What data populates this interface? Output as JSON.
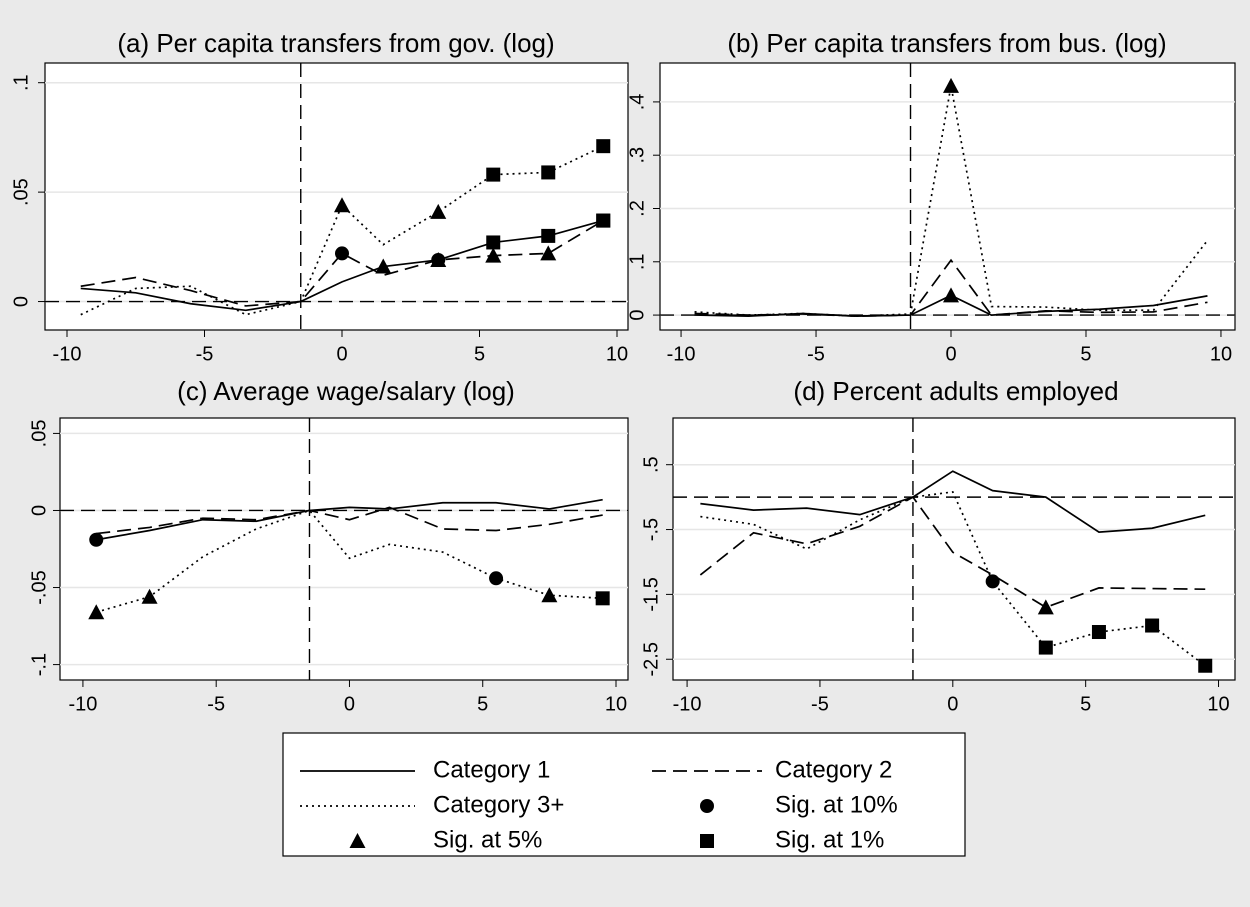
{
  "legend": [
    {
      "name": "Category 1",
      "line": "solid"
    },
    {
      "name": "Category 2",
      "line": "dashed"
    },
    {
      "name": "Category 3+",
      "line": "dotted"
    },
    {
      "name": "Sig. at 10%",
      "symbol": "circle"
    },
    {
      "name": "Sig. at 5%",
      "symbol": "triangle"
    },
    {
      "name": "Sig. at 1%",
      "symbol": "square"
    }
  ],
  "chart_data": [
    {
      "type": "line",
      "title": "(a) Per capita transfers from gov. (log)",
      "x": [
        -9.5,
        -7.5,
        -5.5,
        -3.5,
        -1.5,
        0,
        1.5,
        3.5,
        5.5,
        7.5,
        9.5
      ],
      "xlim": [
        -10.8,
        10.4
      ],
      "xticks": [
        -10,
        -5,
        0,
        5,
        10
      ],
      "ylim": [
        -0.013,
        0.109
      ],
      "yticks": [
        {
          "value": 0,
          "label": "0"
        },
        {
          "value": 0.05,
          "label": ".05"
        },
        {
          "value": 0.1,
          "label": ".1"
        }
      ],
      "grid": true,
      "refline_x": -1.5,
      "refline_y": 0,
      "series": [
        {
          "line": "solid",
          "values": [
            0.006,
            0.004,
            -0.001,
            -0.004,
            0,
            0.009,
            0.016,
            0.019,
            0.027,
            0.03,
            0.037
          ],
          "symbols": [
            null,
            null,
            null,
            null,
            null,
            null,
            "triangle",
            "circle",
            "square",
            "square",
            "square"
          ]
        },
        {
          "line": "dashed",
          "values": [
            0.007,
            0.011,
            0.005,
            -0.002,
            0,
            0.022,
            0.012,
            0.019,
            0.021,
            0.022,
            0.037
          ],
          "symbols": [
            null,
            null,
            null,
            null,
            null,
            "circle",
            null,
            "triangle",
            "triangle",
            "triangle",
            "square"
          ]
        },
        {
          "line": "dotted",
          "values": [
            -0.006,
            0.006,
            0.007,
            -0.006,
            0,
            0.044,
            0.026,
            0.041,
            0.058,
            0.059,
            0.071
          ],
          "symbols": [
            null,
            null,
            null,
            null,
            null,
            "triangle",
            null,
            "triangle",
            "square",
            "square",
            "square"
          ]
        }
      ]
    },
    {
      "type": "line",
      "title": "(b) Per capita transfers from bus. (log)",
      "x": [
        -9.5,
        -7.5,
        -5.5,
        -3.5,
        -1.5,
        0,
        1.5,
        3.5,
        5.5,
        7.5,
        9.5
      ],
      "xlim": [
        -10.78,
        10.52
      ],
      "xticks": [
        -10,
        -5,
        0,
        5,
        10
      ],
      "ylim": [
        -0.028,
        0.473
      ],
      "yticks": [
        {
          "value": 0,
          "label": "0"
        },
        {
          "value": 0.1,
          "label": ".1"
        },
        {
          "value": 0.2,
          "label": ".2"
        },
        {
          "value": 0.3,
          "label": ".3"
        },
        {
          "value": 0.4,
          "label": ".4"
        }
      ],
      "grid": true,
      "refline_x": -1.5,
      "refline_y": 0,
      "series": [
        {
          "line": "solid",
          "values": [
            0,
            -0.002,
            0.003,
            -0.002,
            0,
            0.037,
            0,
            0.007,
            0.011,
            0.018,
            0.036
          ],
          "symbols": [
            null,
            null,
            null,
            null,
            null,
            "triangle",
            null,
            null,
            null,
            null,
            null
          ]
        },
        {
          "line": "dashed",
          "values": [
            0.003,
            0,
            0.002,
            -0.002,
            0,
            0.103,
            0,
            0.008,
            0.005,
            0.006,
            0.024
          ],
          "symbols": [
            null,
            null,
            null,
            null,
            null,
            null,
            null,
            null,
            null,
            null,
            null
          ]
        },
        {
          "line": "dotted",
          "values": [
            0.006,
            0,
            0.003,
            -0.002,
            0.002,
            0.43,
            0.016,
            0.015,
            0.009,
            0.009,
            0.14
          ],
          "symbols": [
            null,
            null,
            null,
            null,
            null,
            "triangle",
            null,
            null,
            null,
            null,
            null
          ]
        }
      ]
    },
    {
      "type": "line",
      "title": "(c) Average wage/salary (log)",
      "x": [
        -9.5,
        -7.5,
        -5.5,
        -3.5,
        -1.5,
        0,
        1.5,
        3.5,
        5.5,
        7.5,
        9.5
      ],
      "xlim": [
        -10.86,
        10.45
      ],
      "xticks": [
        -10,
        -5,
        0,
        5,
        10
      ],
      "ylim": [
        -0.11,
        0.06
      ],
      "yticks": [
        {
          "value": -0.1,
          "label": "-.1"
        },
        {
          "value": -0.05,
          "label": "-.05"
        },
        {
          "value": 0,
          "label": "0"
        },
        {
          "value": 0.05,
          "label": ".05"
        }
      ],
      "grid": true,
      "refline_x": -1.5,
      "refline_y": 0,
      "series": [
        {
          "line": "solid",
          "values": [
            -0.019,
            -0.013,
            -0.006,
            -0.007,
            0,
            0.002,
            0.001,
            0.005,
            0.005,
            0.001,
            0.007
          ],
          "symbols": [
            "circle",
            null,
            null,
            null,
            null,
            null,
            null,
            null,
            null,
            null,
            null
          ]
        },
        {
          "line": "dashed",
          "values": [
            -0.015,
            -0.011,
            -0.005,
            -0.006,
            0,
            -0.006,
            0.002,
            -0.012,
            -0.013,
            -0.009,
            -0.003
          ],
          "symbols": [
            null,
            null,
            null,
            null,
            null,
            null,
            null,
            null,
            null,
            null,
            null
          ]
        },
        {
          "line": "dotted",
          "values": [
            -0.066,
            -0.056,
            -0.03,
            -0.012,
            0,
            -0.031,
            -0.022,
            -0.027,
            -0.044,
            -0.055,
            -0.057
          ],
          "symbols": [
            "triangle",
            "triangle",
            null,
            null,
            null,
            null,
            null,
            null,
            "circle",
            "triangle",
            "square"
          ]
        }
      ]
    },
    {
      "type": "line",
      "title": "(d) Percent adults employed",
      "x": [
        -9.5,
        -7.5,
        -5.5,
        -3.5,
        -1.5,
        0,
        1.5,
        3.5,
        5.5,
        7.5,
        9.5
      ],
      "xlim": [
        -10.53,
        10.62
      ],
      "xticks": [
        -10,
        -5,
        0,
        5,
        10
      ],
      "ylim": [
        -2.82,
        1.22
      ],
      "yticks": [
        {
          "value": -2.5,
          "label": "-2.5"
        },
        {
          "value": -1.5,
          "label": "-1.5"
        },
        {
          "value": -0.5,
          "label": "-.5"
        },
        {
          "value": 0.5,
          "label": ".5"
        }
      ],
      "grid": true,
      "refline_x": -1.5,
      "refline_y": 0,
      "series": [
        {
          "line": "solid",
          "values": [
            -0.1,
            -0.2,
            -0.17,
            -0.27,
            0,
            0.4,
            0.1,
            0,
            -0.54,
            -0.48,
            -0.28
          ],
          "symbols": [
            null,
            null,
            null,
            null,
            null,
            null,
            null,
            null,
            null,
            null,
            null
          ]
        },
        {
          "line": "dashed",
          "values": [
            -1.2,
            -0.55,
            -0.72,
            -0.45,
            0,
            -0.85,
            -1.2,
            -1.7,
            -1.4,
            -1.41,
            -1.42
          ],
          "symbols": [
            null,
            null,
            null,
            null,
            null,
            null,
            null,
            "triangle",
            null,
            null,
            null
          ]
        },
        {
          "line": "dotted",
          "values": [
            -0.3,
            -0.42,
            -0.8,
            -0.35,
            0,
            0.08,
            -1.3,
            -2.32,
            -2.08,
            -1.98,
            -2.6
          ],
          "symbols": [
            null,
            null,
            null,
            null,
            null,
            null,
            "circle",
            "square",
            "square",
            "square",
            "square"
          ]
        }
      ]
    }
  ]
}
